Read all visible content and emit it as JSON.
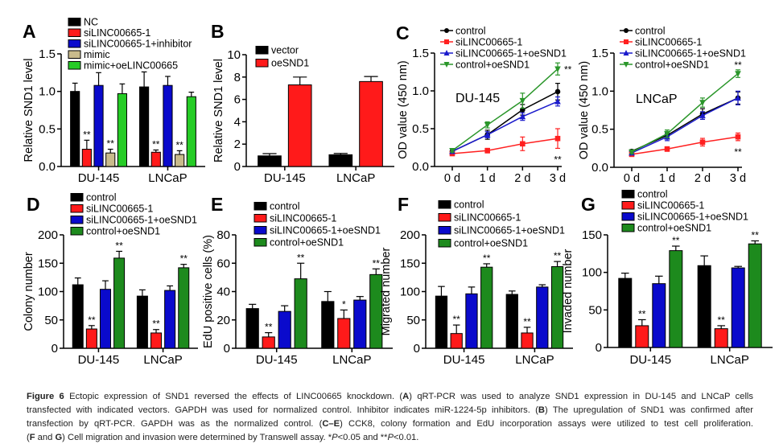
{
  "panel_letters": [
    "A",
    "B",
    "C",
    "D",
    "E",
    "F",
    "G"
  ],
  "colors": {
    "black": "#000000",
    "red": "#ff1a1a",
    "blue": "#0a0acc",
    "tan": "#c9bb8c",
    "light_green": "#26cc26",
    "dark_green": "#1d8a1d"
  },
  "chart_data": [
    {
      "panel": "A",
      "type": "bar",
      "ylabel": "Relative SND1 level",
      "ylim": [
        0,
        1.5
      ],
      "yticks": [
        "0.0",
        "0.5",
        "1.0",
        "1.5"
      ],
      "categories": [
        "DU-145",
        "LNCaP"
      ],
      "legend": "top",
      "series": [
        {
          "name": "NC",
          "color": "#000000",
          "values": [
            1.0,
            1.06
          ],
          "errors": [
            0.11,
            0.2
          ],
          "sig": [
            "",
            ""
          ]
        },
        {
          "name": "siLINC00665-1",
          "color": "#ff1a1a",
          "values": [
            0.23,
            0.19
          ],
          "errors": [
            0.12,
            0.03
          ],
          "sig": [
            "**",
            "**"
          ]
        },
        {
          "name": "siLINC00665-1+inhibitor",
          "color": "#0a0acc",
          "values": [
            1.08,
            1.08
          ],
          "errors": [
            0.17,
            0.12
          ],
          "sig": [
            "",
            ""
          ]
        },
        {
          "name": "mimic",
          "color": "#c9bb8c",
          "values": [
            0.18,
            0.16
          ],
          "errors": [
            0.05,
            0.05
          ],
          "sig": [
            "**",
            "**"
          ]
        },
        {
          "name": "mimic+oeLINC00665",
          "color": "#26cc26",
          "values": [
            0.97,
            0.93
          ],
          "errors": [
            0.13,
            0.06
          ],
          "sig": [
            "",
            ""
          ]
        }
      ]
    },
    {
      "panel": "B",
      "type": "bar",
      "ylabel": "Relative SND1 level",
      "ylim": [
        0,
        10
      ],
      "yticks": [
        "0",
        "2",
        "4",
        "6",
        "8",
        "10"
      ],
      "categories": [
        "DU-145",
        "LNCaP"
      ],
      "legend": "top-left",
      "series": [
        {
          "name": "vector",
          "color": "#000000",
          "values": [
            0.95,
            1.05
          ],
          "errors": [
            0.2,
            0.12
          ],
          "sig": [
            "",
            ""
          ]
        },
        {
          "name": "oeSND1",
          "color": "#ff1a1a",
          "values": [
            7.3,
            7.6
          ],
          "errors": [
            0.7,
            0.45
          ],
          "sig": [
            "",
            ""
          ]
        }
      ]
    },
    {
      "panel": "C",
      "type": "line",
      "ylabel": "OD value (450 nm)",
      "ylim": [
        0,
        1.5
      ],
      "annotation": "DU-145",
      "yticks": [
        "0.0",
        "0.5",
        "1.0",
        "1.5"
      ],
      "x": [
        "0 d",
        "1 d",
        "2 d",
        "3 d"
      ],
      "legend": "top",
      "series": [
        {
          "name": "control",
          "color": "#000000",
          "marker": "circle",
          "values": [
            0.2,
            0.42,
            0.75,
            0.99
          ],
          "errors": [
            0.02,
            0.06,
            0.07,
            0.11
          ]
        },
        {
          "name": "siLINC00665-1",
          "color": "#ff2020",
          "marker": "square",
          "values": [
            0.17,
            0.21,
            0.3,
            0.37
          ],
          "errors": [
            0.01,
            0.03,
            0.09,
            0.13
          ]
        },
        {
          "name": "siLINC00665-1+oeSND1",
          "color": "#1a1acc",
          "marker": "triangle-up",
          "values": [
            0.2,
            0.42,
            0.66,
            0.86
          ],
          "errors": [
            0.02,
            0.04,
            0.05,
            0.06
          ]
        },
        {
          "name": "control+oeSND1",
          "color": "#2a962a",
          "marker": "triangle-down",
          "values": [
            0.21,
            0.55,
            0.87,
            1.29
          ],
          "errors": [
            0.02,
            0.04,
            0.1,
            0.08
          ]
        }
      ],
      "sig": [
        {
          "text": "**",
          "x": "3 d",
          "series": "control+oeSND1",
          "position": "right"
        },
        {
          "text": "**",
          "x": "3 d",
          "series": "siLINC00665-1",
          "position": "below"
        }
      ]
    },
    {
      "panel": "C",
      "type": "line",
      "ylabel": "OD value (450 nm)",
      "ylim": [
        0,
        1.5
      ],
      "annotation": "LNCaP",
      "yticks": [
        "0.0",
        "0.5",
        "1.0",
        "1.5"
      ],
      "x": [
        "0 d",
        "1 d",
        "2 d",
        "3 d"
      ],
      "legend": "top",
      "series": [
        {
          "name": "control",
          "color": "#000000",
          "marker": "circle",
          "values": [
            0.21,
            0.42,
            0.7,
            0.91
          ],
          "errors": [
            0.02,
            0.05,
            0.07,
            0.08
          ]
        },
        {
          "name": "siLINC00665-1",
          "color": "#ff2020",
          "marker": "square",
          "values": [
            0.17,
            0.24,
            0.33,
            0.4
          ],
          "errors": [
            0.02,
            0.03,
            0.05,
            0.05
          ]
        },
        {
          "name": "siLINC00665-1+oeSND1",
          "color": "#1a1acc",
          "marker": "triangle-up",
          "values": [
            0.19,
            0.4,
            0.68,
            0.91
          ],
          "errors": [
            0.02,
            0.05,
            0.05,
            0.09
          ]
        },
        {
          "name": "control+oeSND1",
          "color": "#2a962a",
          "marker": "triangle-down",
          "values": [
            0.2,
            0.44,
            0.85,
            1.23
          ],
          "errors": [
            0.02,
            0.05,
            0.06,
            0.05
          ]
        }
      ],
      "sig": [
        {
          "text": "**",
          "x": "3 d",
          "series": "control+oeSND1",
          "position": "above"
        },
        {
          "text": "**",
          "x": "3 d",
          "series": "siLINC00665-1",
          "position": "below"
        }
      ]
    },
    {
      "panel": "D",
      "type": "bar",
      "ylabel": "Colony number",
      "ylim": [
        0,
        200
      ],
      "yticks": [
        "0",
        "50",
        "100",
        "150",
        "200"
      ],
      "categories": [
        "DU-145",
        "LNCaP"
      ],
      "legend": "top",
      "series": [
        {
          "name": "control",
          "color": "#000000",
          "values": [
            112,
            92
          ],
          "errors": [
            12,
            11
          ],
          "sig": [
            "",
            ""
          ]
        },
        {
          "name": "siLINC00665-1",
          "color": "#ff1a1a",
          "values": [
            34,
            27
          ],
          "errors": [
            6,
            6
          ],
          "sig": [
            "**",
            "**"
          ]
        },
        {
          "name": "siLINC00665-1+oeSND1",
          "color": "#0a0acc",
          "values": [
            104,
            102
          ],
          "errors": [
            15,
            8
          ],
          "sig": [
            "",
            ""
          ]
        },
        {
          "name": "control+oeSND1",
          "color": "#1d8a1d",
          "values": [
            159,
            142
          ],
          "errors": [
            12,
            6
          ],
          "sig": [
            "**",
            "**"
          ]
        }
      ]
    },
    {
      "panel": "E",
      "type": "bar",
      "ylabel": "EdU positive cells (%)",
      "ylim": [
        0,
        80
      ],
      "yticks": [
        "0",
        "20",
        "40",
        "60",
        "80"
      ],
      "categories": [
        "DU-145",
        "LNCaP"
      ],
      "legend": "top",
      "series": [
        {
          "name": "control",
          "color": "#000000",
          "values": [
            28,
            33
          ],
          "errors": [
            3,
            7
          ],
          "sig": [
            "",
            ""
          ]
        },
        {
          "name": "siLINC00665-1",
          "color": "#ff1a1a",
          "values": [
            8,
            21
          ],
          "errors": [
            3,
            6
          ],
          "sig": [
            "**",
            "*"
          ]
        },
        {
          "name": "siLINC00665-1+oeSND1",
          "color": "#0a0acc",
          "values": [
            26,
            34
          ],
          "errors": [
            4,
            2.5
          ],
          "sig": [
            "",
            ""
          ]
        },
        {
          "name": "control+oeSND1",
          "color": "#1d8a1d",
          "values": [
            49,
            52
          ],
          "errors": [
            11,
            4
          ],
          "sig": [
            "**",
            "**"
          ]
        }
      ]
    },
    {
      "panel": "F",
      "type": "bar",
      "ylabel": "Migrated number",
      "ylim": [
        0,
        200
      ],
      "yticks": [
        "0",
        "50",
        "100",
        "150",
        "200"
      ],
      "categories": [
        "DU-145",
        "LNCaP"
      ],
      "legend": "top",
      "series": [
        {
          "name": "control",
          "color": "#000000",
          "values": [
            92,
            95
          ],
          "errors": [
            17,
            6
          ],
          "sig": [
            "",
            ""
          ]
        },
        {
          "name": "siLINC00665-1",
          "color": "#ff1a1a",
          "values": [
            26,
            27
          ],
          "errors": [
            15,
            10
          ],
          "sig": [
            "**",
            "**"
          ]
        },
        {
          "name": "siLINC00665-1+oeSND1",
          "color": "#0a0acc",
          "values": [
            96,
            108
          ],
          "errors": [
            12,
            4
          ],
          "sig": [
            "",
            ""
          ]
        },
        {
          "name": "control+oeSND1",
          "color": "#1d8a1d",
          "values": [
            143,
            144
          ],
          "errors": [
            6,
            9
          ],
          "sig": [
            "**",
            "**"
          ]
        }
      ]
    },
    {
      "panel": "G",
      "type": "bar",
      "ylabel": "Invaded number",
      "ylim": [
        0,
        150
      ],
      "yticks": [
        "0",
        "50",
        "100",
        "150"
      ],
      "categories": [
        "DU-145",
        "LNCaP"
      ],
      "legend": "top",
      "series": [
        {
          "name": "control",
          "color": "#000000",
          "values": [
            92,
            109
          ],
          "errors": [
            7,
            13
          ],
          "sig": [
            "",
            ""
          ]
        },
        {
          "name": "siLINC00665-1",
          "color": "#ff1a1a",
          "values": [
            29,
            25
          ],
          "errors": [
            8,
            4
          ],
          "sig": [
            "**",
            "**"
          ]
        },
        {
          "name": "siLINC00665-1+oeSND1",
          "color": "#0a0acc",
          "values": [
            85,
            106
          ],
          "errors": [
            10,
            2
          ],
          "sig": [
            "",
            ""
          ]
        },
        {
          "name": "control+oeSND1",
          "color": "#1d8a1d",
          "values": [
            129,
            138
          ],
          "errors": [
            6,
            4
          ],
          "sig": [
            "**",
            "**"
          ]
        }
      ]
    }
  ],
  "caption": {
    "lines": [
      [
        {
          "t": "Figure 6",
          "s": "b"
        },
        {
          "t": " Ectopic expression of SND1 reversed the effects of LINC00665 knockdown. (",
          "s": ""
        },
        {
          "t": "A",
          "s": "b"
        },
        {
          "t": ") qRT-PCR was used to analyze SND1 expression in DU-145 and LNCaP cells",
          "s": ""
        }
      ],
      [
        {
          "t": "transfected with indicated vectors. GAPDH was used for normalized control. Inhibitor indicates miR-1224-5p inhibitors. (",
          "s": ""
        },
        {
          "t": "B",
          "s": "b"
        },
        {
          "t": ") The upregulation of SND1 was confirmed after",
          "s": ""
        }
      ],
      [
        {
          "t": "transfection by qRT-PCR. GAPDH was as the normalized control. (",
          "s": ""
        },
        {
          "t": "C–E",
          "s": "b"
        },
        {
          "t": ") CCK8, colony formation and EdU incorporation assays were utilized to test cell proliferation.",
          "s": ""
        }
      ],
      [
        {
          "t": "(",
          "s": ""
        },
        {
          "t": "F",
          "s": "b"
        },
        {
          "t": " and ",
          "s": ""
        },
        {
          "t": "G",
          "s": "b"
        },
        {
          "t": ") Cell migration and invasion were determined by Transwell assay. *",
          "s": ""
        },
        {
          "t": "P",
          "s": "i"
        },
        {
          "t": "<0.05 and **",
          "s": ""
        },
        {
          "t": "P",
          "s": "i"
        },
        {
          "t": "<0.01.",
          "s": ""
        }
      ]
    ]
  }
}
